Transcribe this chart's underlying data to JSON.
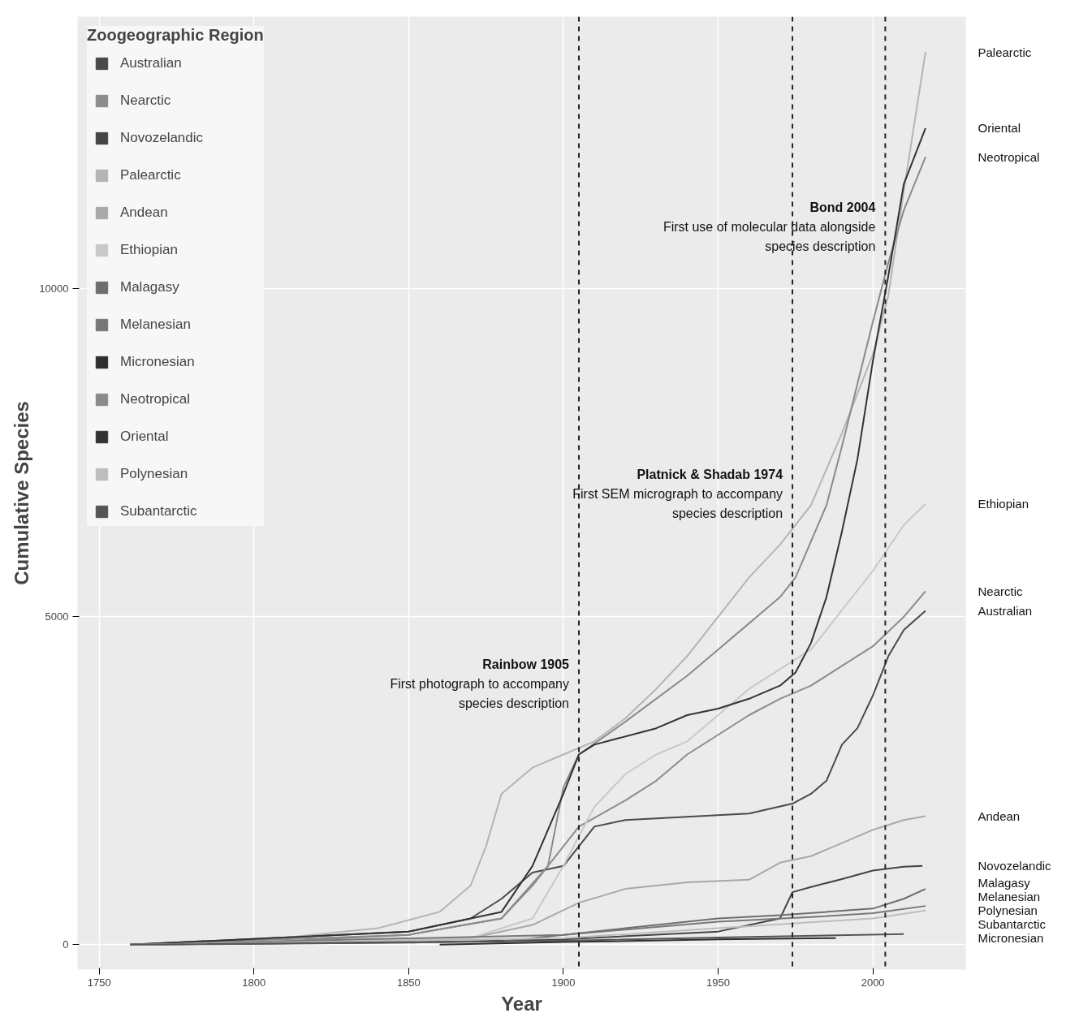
{
  "chart_data": {
    "type": "line",
    "xlabel": "Year",
    "ylabel": "Cumulative Species",
    "legend_title": "Zoogeographic Region",
    "legend": "top left",
    "grid": true,
    "line_style": "solid",
    "xlim": [
      1743,
      2030
    ],
    "ylim": [
      -380,
      14150
    ],
    "xticks": [
      1750,
      1800,
      1850,
      1900,
      1950,
      2000
    ],
    "yticks": [
      0,
      5000,
      10000
    ],
    "series": [
      {
        "name": "Australian",
        "color": "#4a4a4a",
        "x": [
          1760,
          1850,
          1870,
          1880,
          1890,
          1900,
          1905,
          1910,
          1920,
          1940,
          1960,
          1974,
          1980,
          1985,
          1990,
          1995,
          2000,
          2005,
          2010,
          2017
        ],
        "values": [
          0,
          200,
          400,
          700,
          1100,
          1200,
          1500,
          1800,
          1900,
          1950,
          2000,
          2150,
          2300,
          2500,
          3050,
          3300,
          3800,
          4400,
          4800,
          5090
        ]
      },
      {
        "name": "Nearctic",
        "color": "#8c8c8c",
        "x": [
          1760,
          1800,
          1850,
          1880,
          1890,
          1900,
          1905,
          1920,
          1930,
          1940,
          1950,
          1960,
          1970,
          1980,
          1990,
          2000,
          2010,
          2017
        ],
        "values": [
          0,
          30,
          150,
          400,
          900,
          1500,
          1800,
          2200,
          2500,
          2900,
          3200,
          3500,
          3750,
          3950,
          4250,
          4550,
          5000,
          5390
        ]
      },
      {
        "name": "Novozelandic",
        "color": "#444444",
        "x": [
          1760,
          1850,
          1900,
          1950,
          1970,
          1974,
          1980,
          1990,
          2000,
          2010,
          2016
        ],
        "values": [
          0,
          30,
          80,
          200,
          400,
          800,
          880,
          1000,
          1130,
          1190,
          1200
        ]
      },
      {
        "name": "Palearctic",
        "color": "#b4b4b4",
        "x": [
          1760,
          1800,
          1840,
          1860,
          1870,
          1875,
          1880,
          1890,
          1900,
          1910,
          1920,
          1930,
          1940,
          1950,
          1960,
          1970,
          1980,
          1990,
          2000,
          2005,
          2010,
          2017
        ],
        "values": [
          0,
          60,
          250,
          500,
          900,
          1500,
          2300,
          2700,
          2900,
          3100,
          3450,
          3900,
          4400,
          5000,
          5600,
          6100,
          6700,
          7800,
          9000,
          9900,
          11500,
          13610
        ]
      },
      {
        "name": "Andean",
        "color": "#a8a8a8",
        "x": [
          1760,
          1870,
          1890,
          1905,
          1920,
          1940,
          1960,
          1970,
          1980,
          1990,
          2000,
          2010,
          2017
        ],
        "values": [
          0,
          100,
          300,
          640,
          850,
          950,
          990,
          1250,
          1350,
          1550,
          1750,
          1900,
          1960
        ]
      },
      {
        "name": "Ethiopian",
        "color": "#c8c8c8",
        "x": [
          1760,
          1870,
          1890,
          1900,
          1910,
          1920,
          1930,
          1940,
          1950,
          1960,
          1970,
          1980,
          1990,
          2000,
          2010,
          2017
        ],
        "values": [
          0,
          100,
          400,
          1200,
          2100,
          2600,
          2900,
          3100,
          3500,
          3900,
          4200,
          4500,
          5100,
          5700,
          6400,
          6720
        ]
      },
      {
        "name": "Malagasy",
        "color": "#6e6e6e",
        "x": [
          1760,
          1880,
          1900,
          1920,
          1950,
          1970,
          2000,
          2010,
          2017
        ],
        "values": [
          0,
          50,
          150,
          250,
          400,
          450,
          550,
          700,
          850
        ]
      },
      {
        "name": "Melanesian",
        "color": "#777777",
        "x": [
          1760,
          1900,
          1950,
          1980,
          2000,
          2017
        ],
        "values": [
          0,
          150,
          350,
          420,
          480,
          590
        ]
      },
      {
        "name": "Micronesian",
        "color": "#2e2e2e",
        "x": [
          1860,
          1900,
          1950,
          1988
        ],
        "values": [
          0,
          40,
          80,
          100
        ]
      },
      {
        "name": "Neotropical",
        "color": "#8a8a8a",
        "x": [
          1760,
          1850,
          1880,
          1895,
          1900,
          1905,
          1920,
          1940,
          1950,
          1960,
          1970,
          1975,
          1985,
          1990,
          2000,
          2005,
          2010,
          2017
        ],
        "values": [
          0,
          150,
          400,
          1200,
          2400,
          2900,
          3400,
          4100,
          4500,
          4900,
          5300,
          5600,
          6700,
          7600,
          9500,
          10400,
          11200,
          12010
        ]
      },
      {
        "name": "Oriental",
        "color": "#333333",
        "x": [
          1760,
          1850,
          1880,
          1890,
          1900,
          1905,
          1910,
          1930,
          1940,
          1950,
          1960,
          1970,
          1975,
          1980,
          1985,
          1990,
          1995,
          2000,
          2005,
          2010,
          2017
        ],
        "values": [
          0,
          200,
          500,
          1200,
          2300,
          2900,
          3050,
          3300,
          3500,
          3600,
          3750,
          3950,
          4150,
          4600,
          5300,
          6300,
          7400,
          8900,
          10200,
          11600,
          12450
        ]
      },
      {
        "name": "Polynesian",
        "color": "#bdbdbd",
        "x": [
          1760,
          1900,
          1950,
          2000,
          2017
        ],
        "values": [
          0,
          100,
          250,
          400,
          520
        ]
      },
      {
        "name": "Subantarctic",
        "color": "#555555",
        "x": [
          1760,
          1900,
          1950,
          2010
        ],
        "values": [
          0,
          60,
          110,
          160
        ]
      }
    ],
    "ref_lines": [
      {
        "axis": "x",
        "value": 1905,
        "label": "Rainbow 1905\nFirst photograph to accompany\nspecies description",
        "line_style": "dashed",
        "color": "#222222"
      },
      {
        "axis": "x",
        "value": 1974,
        "label": "Platnick & Shadab 1974\nFirst SEM micrograph to accompany\nspecies description",
        "line_style": "dashed",
        "color": "#222222"
      },
      {
        "axis": "x",
        "value": 2004,
        "label": "Bond 2004\nFirst use of molecular data alongside\nspecies description",
        "line_style": "dashed",
        "color": "#222222"
      }
    ]
  }
}
